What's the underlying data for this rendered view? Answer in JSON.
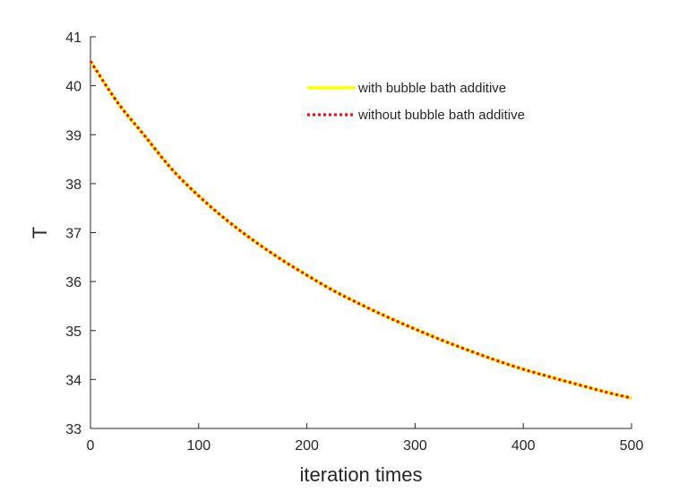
{
  "chart_data": {
    "type": "line",
    "title": "",
    "xlabel": "iteration times",
    "ylabel": "T",
    "xlim": [
      0,
      500
    ],
    "ylim": [
      33,
      41
    ],
    "xticks": [
      0,
      100,
      200,
      300,
      400,
      500
    ],
    "yticks": [
      33,
      34,
      35,
      36,
      37,
      38,
      39,
      40,
      41
    ],
    "grid": false,
    "legend_position": "top-right",
    "series": [
      {
        "name": "with bubble bath additive",
        "color": "#ffff00",
        "style": "solid",
        "x": [
          0,
          25,
          50,
          75,
          100,
          125,
          150,
          175,
          200,
          225,
          250,
          275,
          300,
          325,
          350,
          375,
          400,
          425,
          450,
          475,
          500
        ],
        "y": [
          40.5,
          39.66,
          38.98,
          38.3,
          37.75,
          37.27,
          36.85,
          36.47,
          36.13,
          35.81,
          35.53,
          35.27,
          35.03,
          34.8,
          34.59,
          34.39,
          34.21,
          34.05,
          33.9,
          33.75,
          33.62
        ]
      },
      {
        "name": "without bubble bath additive",
        "color": "#ff0000",
        "style": "dotted",
        "x": [
          0,
          25,
          50,
          75,
          100,
          125,
          150,
          175,
          200,
          225,
          250,
          275,
          300,
          325,
          350,
          375,
          400,
          425,
          450,
          475,
          500
        ],
        "y": [
          40.5,
          39.66,
          38.98,
          38.3,
          37.75,
          37.27,
          36.85,
          36.47,
          36.13,
          35.81,
          35.53,
          35.27,
          35.03,
          34.8,
          34.59,
          34.39,
          34.21,
          34.05,
          33.9,
          33.75,
          33.62
        ]
      }
    ]
  }
}
